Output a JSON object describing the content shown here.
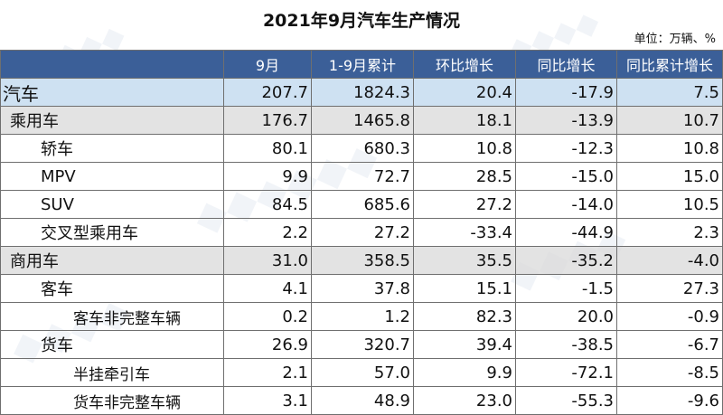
{
  "title": "2021年9月汽车生产情况",
  "unit_note": "单位：万辆、%",
  "columns": [
    "",
    "9月",
    "1-9月累计",
    "环比增长",
    "同比增长",
    "同比累计增长"
  ],
  "rows": [
    {
      "name": "汽车",
      "level": 0,
      "values": [
        "207.7",
        "1824.3",
        "20.4",
        "-17.9",
        "7.5"
      ]
    },
    {
      "name": "乘用车",
      "level": 1,
      "values": [
        "176.7",
        "1465.8",
        "18.1",
        "-13.9",
        "10.7"
      ]
    },
    {
      "name": "轿车",
      "level": 2,
      "values": [
        "80.1",
        "680.3",
        "10.8",
        "-12.3",
        "10.8"
      ]
    },
    {
      "name": "MPV",
      "level": 2,
      "values": [
        "9.9",
        "72.7",
        "28.5",
        "-15.0",
        "15.0"
      ]
    },
    {
      "name": "SUV",
      "level": 2,
      "values": [
        "84.5",
        "685.6",
        "27.2",
        "-14.0",
        "10.5"
      ]
    },
    {
      "name": "交叉型乘用车",
      "level": 2,
      "values": [
        "2.2",
        "27.2",
        "-33.4",
        "-44.9",
        "2.3"
      ]
    },
    {
      "name": "商用车",
      "level": 1,
      "values": [
        "31.0",
        "358.5",
        "35.5",
        "-35.2",
        "-4.0"
      ]
    },
    {
      "name": "客车",
      "level": 2,
      "values": [
        "4.1",
        "37.8",
        "15.1",
        "-1.5",
        "27.3"
      ]
    },
    {
      "name": "客车非完整车辆",
      "level": 3,
      "values": [
        "0.2",
        "1.2",
        "82.3",
        "20.0",
        "-0.9"
      ]
    },
    {
      "name": "货车",
      "level": 2,
      "values": [
        "26.9",
        "320.7",
        "39.4",
        "-38.5",
        "-6.7"
      ]
    },
    {
      "name": "半挂牵引车",
      "level": 3,
      "values": [
        "2.1",
        "57.0",
        "9.9",
        "-72.1",
        "-8.5"
      ]
    },
    {
      "name": "货车非完整车辆",
      "level": 3,
      "values": [
        "3.1",
        "48.9",
        "23.0",
        "-55.3",
        "-9.6"
      ]
    }
  ]
}
